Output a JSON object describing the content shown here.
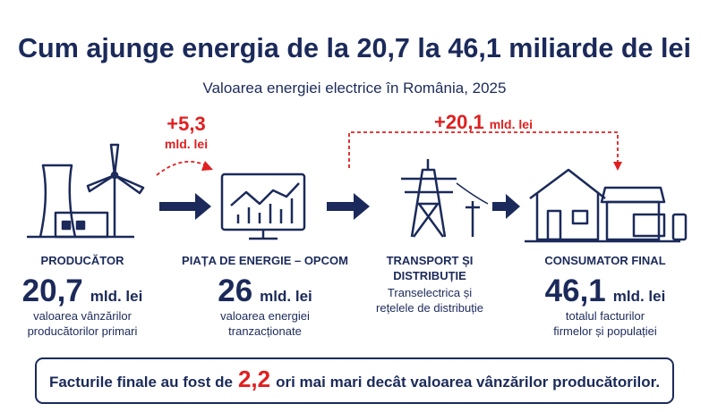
{
  "header": {
    "title": "Cum ajunge energia de la 20,7 la 46,1 miliarde de lei",
    "subtitle": "Valoarea energiei electrice în România, 2025"
  },
  "increments": [
    {
      "value": "+5,3",
      "unit": "mld. lei"
    },
    {
      "value": "+20,1",
      "unit": "mld. lei"
    }
  ],
  "steps": [
    {
      "label": [
        "PRODUCĂTOR"
      ],
      "value": "20,7",
      "unit": "mld. lei",
      "description": [
        "valoarea vânzărilor",
        "producătorilor primari"
      ]
    },
    {
      "label": [
        "PIAȚA DE ENERGIE – OPCOM"
      ],
      "value": "26",
      "unit": "mld. lei",
      "description": [
        "valoarea energiei",
        "tranzacționate"
      ]
    },
    {
      "label": [
        "TRANSPORT ȘI",
        "DISTRIBUȚIE"
      ],
      "description": [
        "Transelectrica și",
        "rețelele de distribuție"
      ]
    },
    {
      "label": [
        "CONSUMATOR FINAL"
      ],
      "value": "46,1",
      "unit": "mld. lei",
      "description": [
        "totalul facturilor",
        "firmelor și populației"
      ]
    }
  ],
  "footer": {
    "before": "Facturile finale au fost de",
    "highlight": "2,2",
    "after": "ori mai mari decât valoarea vânzărilor producătorilor."
  }
}
